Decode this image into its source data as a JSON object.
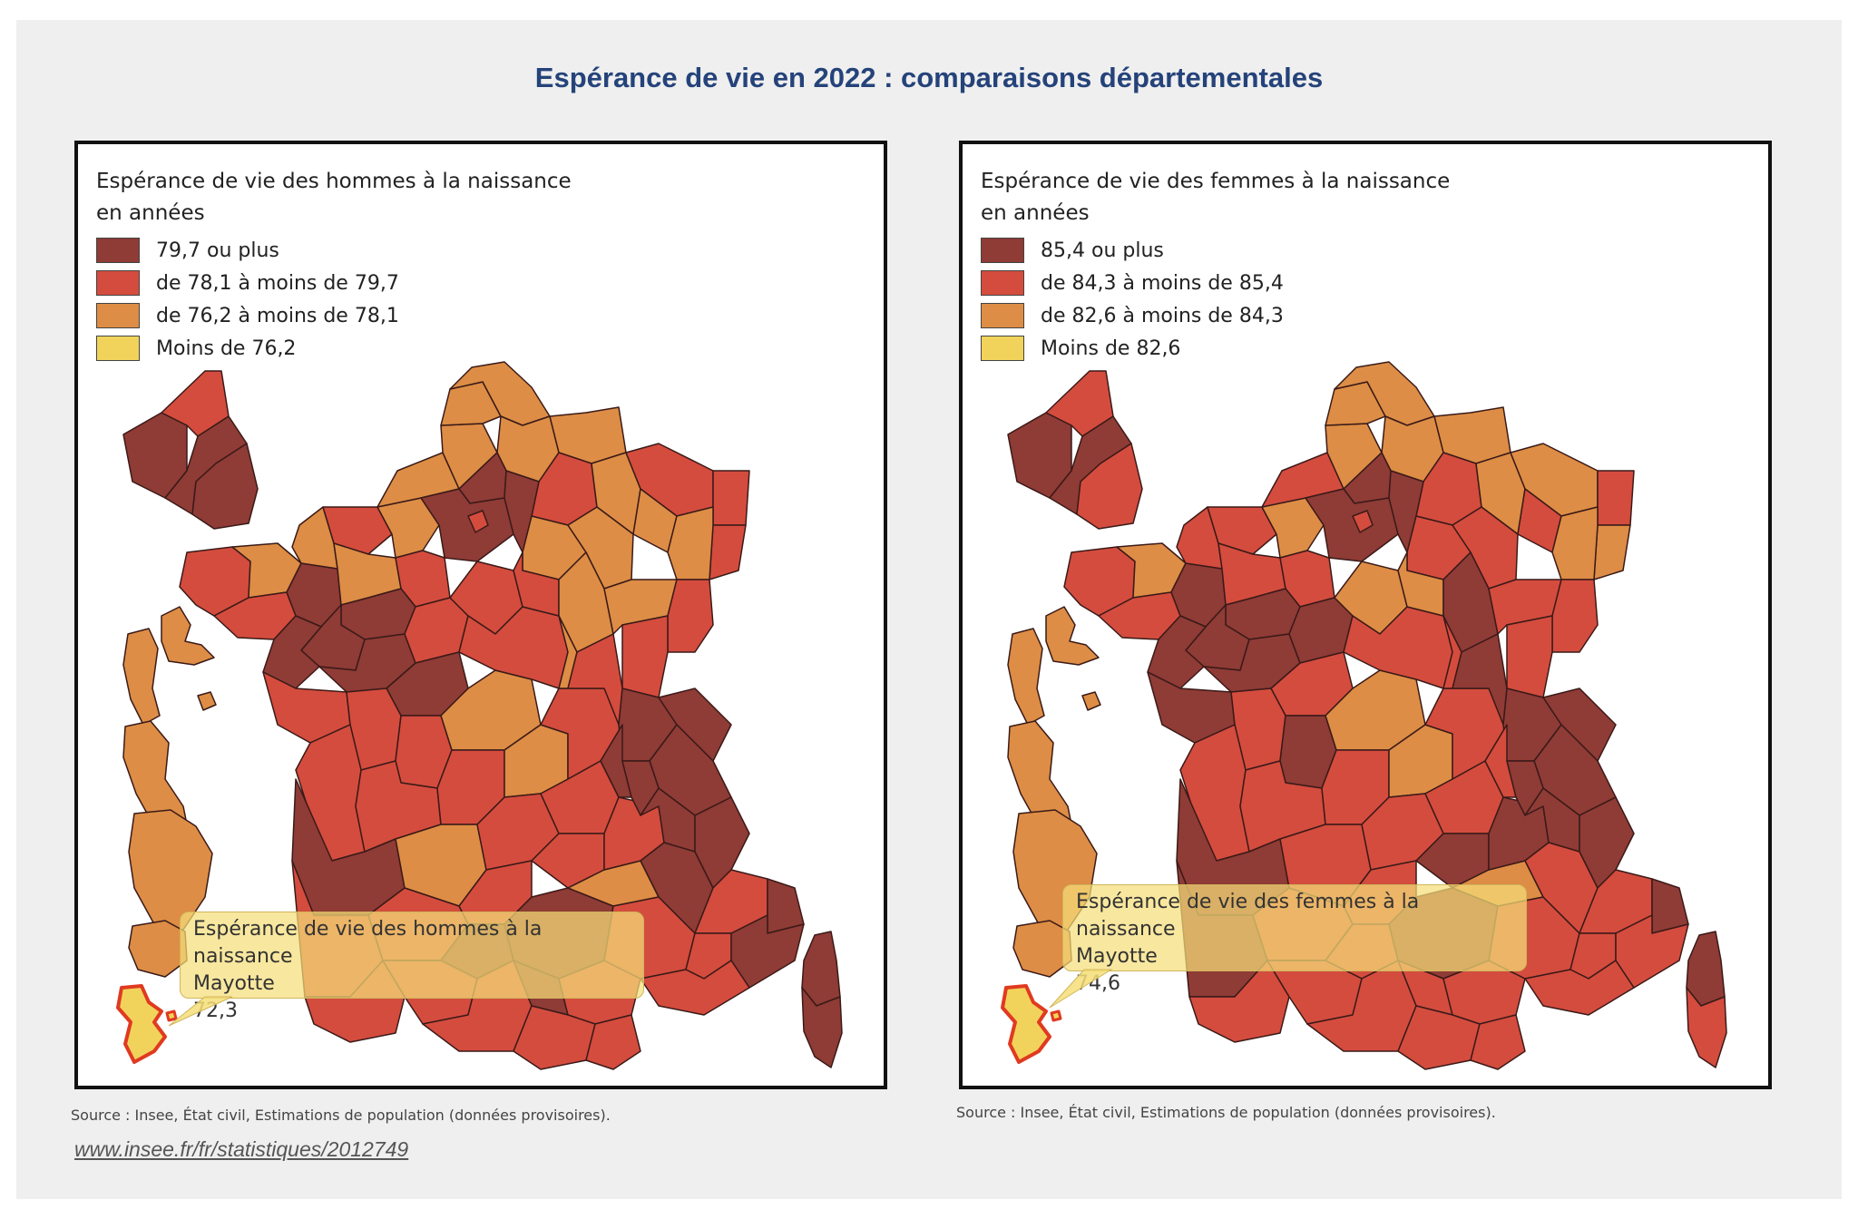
{
  "title": "Espérance de vie en 2022 : comparaisons départementales",
  "colors": {
    "dark": "#8f3b36",
    "red": "#d44c3e",
    "orange": "#dd8d45",
    "yellow": "#f1d35b",
    "title": "#25437a"
  },
  "maps": [
    {
      "legend_title_line1": "Espérance de vie des hommes à la naissance",
      "legend_title_line2": "en années",
      "legend": [
        {
          "label": "79,7 ou plus",
          "color": "#8f3b36"
        },
        {
          "label": "de 78,1 à moins de 79,7",
          "color": "#d44c3e"
        },
        {
          "label": "de 76,2 à moins de 78,1",
          "color": "#dd8d45"
        },
        {
          "label": "Moins de 76,2",
          "color": "#f1d35b"
        }
      ],
      "tooltip": {
        "line1": "Espérance de vie des hommes à la naissance",
        "line2": "Mayotte",
        "value": "72,3"
      },
      "source": "Source : Insee, État civil, Estimations de population (données provisoires)."
    },
    {
      "legend_title_line1": "Espérance de vie des femmes à la naissance",
      "legend_title_line2": "en années",
      "legend": [
        {
          "label": "85,4 ou plus",
          "color": "#8f3b36"
        },
        {
          "label": "de 84,3 à moins de 85,4",
          "color": "#d44c3e"
        },
        {
          "label": "de 82,6 à moins de 84,3",
          "color": "#dd8d45"
        },
        {
          "label": "Moins de 82,6",
          "color": "#f1d35b"
        }
      ],
      "tooltip": {
        "line1": "Espérance de vie des femmes à la naissance",
        "line2": "Mayotte",
        "value": "74,6"
      },
      "source": "Source : Insee, État civil, Estimations de population (données provisoires)."
    }
  ],
  "link": "www.insee.fr/fr/statistiques/2012749"
}
